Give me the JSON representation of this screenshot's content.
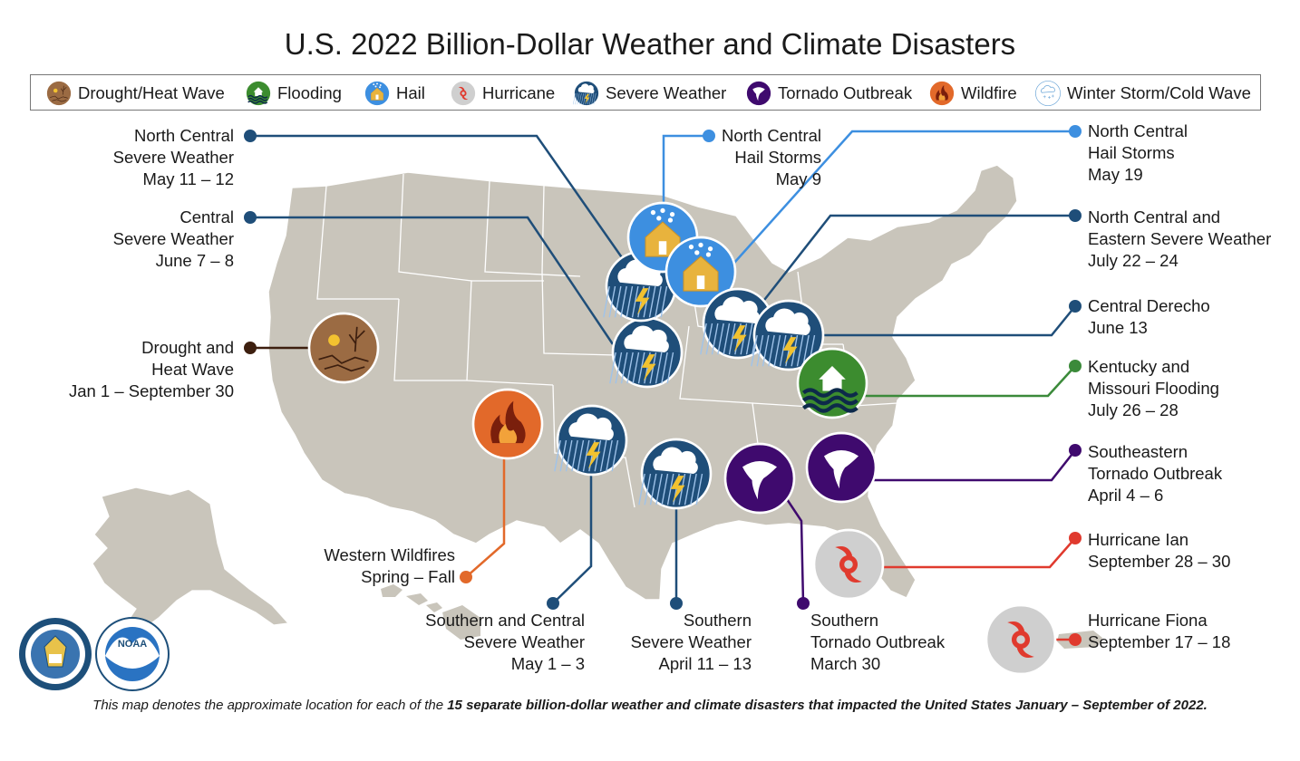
{
  "title": "U.S. 2022 Billion-Dollar Weather and Climate Disasters",
  "legend": [
    {
      "type": "drought",
      "label": "Drought/Heat Wave"
    },
    {
      "type": "flooding",
      "label": "Flooding"
    },
    {
      "type": "hail",
      "label": "Hail"
    },
    {
      "type": "hurricane",
      "label": "Hurricane"
    },
    {
      "type": "severe",
      "label": "Severe Weather"
    },
    {
      "type": "tornado",
      "label": "Tornado Outbreak"
    },
    {
      "type": "wildfire",
      "label": "Wildfire"
    },
    {
      "type": "winter",
      "label": "Winter Storm/Cold Wave"
    }
  ],
  "events": [
    {
      "id": "nc-severe-may",
      "type": "severe",
      "lines": [
        "North Central",
        "Severe Weather",
        "May 11 – 12"
      ]
    },
    {
      "id": "central-severe-june",
      "type": "severe",
      "lines": [
        "Central",
        "Severe Weather",
        "June 7 – 8"
      ]
    },
    {
      "id": "drought",
      "type": "drought",
      "lines": [
        "Drought and",
        "Heat Wave",
        "Jan 1 – September 30"
      ]
    },
    {
      "id": "nc-hail-may9",
      "type": "hail",
      "lines": [
        "North Central",
        "Hail Storms",
        "May 9"
      ]
    },
    {
      "id": "nc-hail-may19",
      "type": "hail",
      "lines": [
        "North Central",
        "Hail Storms",
        "May 19"
      ]
    },
    {
      "id": "nce-severe-july",
      "type": "severe",
      "lines": [
        "North Central and",
        "Eastern Severe Weather",
        "July 22 – 24"
      ]
    },
    {
      "id": "central-derecho",
      "type": "severe",
      "lines": [
        "Central Derecho",
        "June 13"
      ]
    },
    {
      "id": "ky-mo-flooding",
      "type": "flooding",
      "lines": [
        "Kentucky and",
        "Missouri Flooding",
        "July 26 – 28"
      ]
    },
    {
      "id": "se-tornado",
      "type": "tornado",
      "lines": [
        "Southeastern",
        "Tornado Outbreak",
        "April 4 – 6"
      ]
    },
    {
      "id": "hurricane-ian",
      "type": "hurricane",
      "lines": [
        "Hurricane Ian",
        "September 28 – 30"
      ]
    },
    {
      "id": "hurricane-fiona",
      "type": "hurricane",
      "lines": [
        "Hurricane Fiona",
        "September 17 – 18"
      ]
    },
    {
      "id": "western-wildfires",
      "type": "wildfire",
      "lines": [
        "Western Wildfires",
        "Spring – Fall"
      ]
    },
    {
      "id": "sc-severe-may",
      "type": "severe",
      "lines": [
        "Southern and Central",
        "Severe Weather",
        "May 1 – 3"
      ]
    },
    {
      "id": "southern-severe-april",
      "type": "severe",
      "lines": [
        "Southern",
        "Severe Weather",
        "April 11 – 13"
      ]
    },
    {
      "id": "southern-tornado-march",
      "type": "tornado",
      "lines": [
        "Southern",
        "Tornado Outbreak",
        "March 30"
      ]
    }
  ],
  "colors": {
    "map_land": "#c9c5bb",
    "state_border": "#ffffff",
    "severe": "#1f4e79",
    "hail": "#3d8fe0",
    "drought": "#9b6b43",
    "flooding": "#3c8c2f",
    "hurricane": "#cfcfcf",
    "hurricane_mark": "#e03a2e",
    "tornado": "#3f0a6e",
    "wildfire": "#e2692a",
    "leader_severe": "#1f4e79",
    "leader_hail": "#3d8fe0",
    "leader_drought": "#3d1f0f",
    "leader_flooding": "#3b8a3a",
    "leader_tornado": "#3f0a6e",
    "leader_hurricane": "#e03a2e",
    "leader_wildfire": "#e2692a"
  },
  "footnote": {
    "prefix": "This map denotes the approximate location for each of the ",
    "bold": "15 separate billion-dollar weather and climate disasters that impacted the United States January – September of 2022.",
    "suffix": ""
  },
  "seals": [
    {
      "name": "department-of-commerce-seal",
      "text": "DEPARTMENT OF COMMERCE"
    },
    {
      "name": "noaa-logo",
      "text": "NOAA"
    }
  ]
}
